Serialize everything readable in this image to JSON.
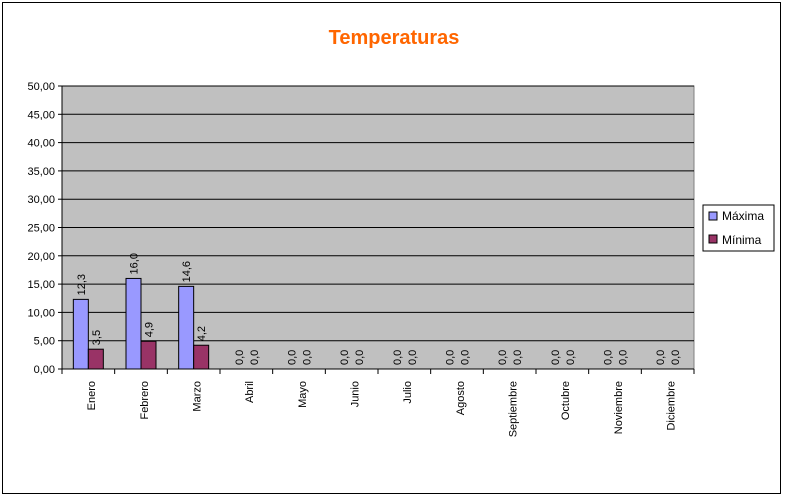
{
  "chart_data": {
    "type": "bar",
    "title": "Temperaturas",
    "categories": [
      "Enero",
      "Febrero",
      "Marzo",
      "Abril",
      "Mayo",
      "Junio",
      "Julio",
      "Agosto",
      "Septiembre",
      "Octubre",
      "Noviembre",
      "Diciembre"
    ],
    "series": [
      {
        "name": "Máxima",
        "values": [
          12.3,
          16.0,
          14.6,
          0,
          0,
          0,
          0,
          0,
          0,
          0,
          0,
          0
        ]
      },
      {
        "name": "Mínima",
        "values": [
          3.5,
          4.9,
          4.2,
          0,
          0,
          0,
          0,
          0,
          0,
          0,
          0,
          0
        ]
      }
    ],
    "data_labels": [
      [
        "12,3",
        "16,0",
        "14,6",
        "0,0",
        "0,0",
        "0,0",
        "0,0",
        "0,0",
        "0,0",
        "0,0",
        "0,0",
        "0,0"
      ],
      [
        "3,5",
        "4,9",
        "4,2",
        "0,0",
        "0,0",
        "0,0",
        "0,0",
        "0,0",
        "0,0",
        "0,0",
        "0,0",
        "0,0"
      ]
    ],
    "yticks": [
      "0,00",
      "5,00",
      "10,00",
      "15,00",
      "20,00",
      "25,00",
      "30,00",
      "35,00",
      "40,00",
      "45,00",
      "50,00"
    ],
    "ylim": [
      0,
      50
    ],
    "grid": true,
    "legend_position": "right",
    "colors": {
      "series": [
        "#9999ff",
        "#993366"
      ],
      "plot_background": "#c0c0c0",
      "title": "#ff6600",
      "gridline": "#000000"
    }
  }
}
